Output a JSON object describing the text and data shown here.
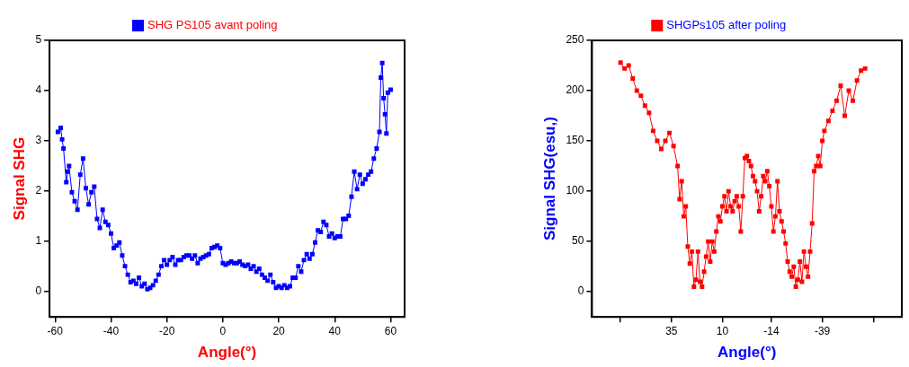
{
  "chart_data": [
    {
      "type": "line",
      "xlabel": "Angle(°)",
      "ylabel": "Signal SHG",
      "marker": "square",
      "legend": "top",
      "xlim": [
        -62,
        65
      ],
      "ylim": [
        -0.5,
        5
      ],
      "xticks": [
        -60,
        -40,
        -20,
        0,
        20,
        40,
        60
      ],
      "yticks": [
        0,
        1,
        2,
        3,
        4,
        5
      ],
      "x": [
        -59,
        -58,
        -57.5,
        -57,
        -56,
        -55.5,
        -55,
        -54,
        -53,
        -52,
        -51,
        -50,
        -49,
        -48,
        -47,
        -46,
        -45,
        -44,
        -43,
        -42,
        -41,
        -40,
        -39,
        -38,
        -37,
        -36,
        -35,
        -34,
        -33,
        -32,
        -31,
        -30,
        -29,
        -28,
        -27,
        -26,
        -25,
        -24,
        -23,
        -22,
        -21,
        -20,
        -19,
        -18,
        -17,
        -16,
        -15,
        -14,
        -13,
        -12,
        -11,
        -10,
        -9,
        -8,
        -7,
        -6,
        -5,
        -4,
        -3,
        -2,
        -1,
        0,
        1,
        2,
        3,
        4,
        5,
        6,
        7,
        8,
        9,
        10,
        11,
        12,
        13,
        14,
        15,
        16,
        17,
        18,
        19,
        20,
        21,
        22,
        23,
        24,
        25,
        26,
        27,
        28,
        29,
        30,
        31,
        32,
        33,
        34,
        35,
        36,
        37,
        38,
        39,
        40,
        41,
        42,
        43,
        44,
        45,
        46,
        47,
        48,
        49,
        50,
        51,
        52,
        53,
        54,
        55,
        56,
        56.5,
        57,
        57.5,
        58,
        58.5,
        59,
        60
      ],
      "series": [
        {
          "name": "SHG PS105 avant poling",
          "color": "#0000ff",
          "values": [
            3.18,
            3.26,
            3.03,
            2.85,
            2.18,
            2.39,
            2.5,
            1.98,
            1.8,
            1.63,
            2.33,
            2.65,
            2.06,
            1.74,
            1.98,
            2.09,
            1.45,
            1.27,
            1.63,
            1.39,
            1.33,
            1.16,
            0.87,
            0.92,
            0.98,
            0.72,
            0.51,
            0.34,
            0.19,
            0.22,
            0.16,
            0.28,
            0.11,
            0.16,
            0.05,
            0.08,
            0.13,
            0.22,
            0.34,
            0.51,
            0.63,
            0.54,
            0.63,
            0.69,
            0.54,
            0.63,
            0.63,
            0.69,
            0.72,
            0.72,
            0.66,
            0.72,
            0.57,
            0.66,
            0.69,
            0.72,
            0.75,
            0.87,
            0.89,
            0.92,
            0.87,
            0.57,
            0.54,
            0.57,
            0.6,
            0.57,
            0.57,
            0.6,
            0.54,
            0.51,
            0.54,
            0.46,
            0.51,
            0.4,
            0.46,
            0.34,
            0.28,
            0.22,
            0.34,
            0.19,
            0.08,
            0.11,
            0.08,
            0.13,
            0.08,
            0.11,
            0.28,
            0.28,
            0.51,
            0.4,
            0.63,
            0.75,
            0.66,
            0.75,
            0.98,
            1.22,
            1.19,
            1.39,
            1.33,
            1.1,
            1.16,
            1.07,
            1.1,
            1.1,
            1.45,
            1.45,
            1.51,
            1.89,
            2.39,
            2.04,
            2.33,
            2.15,
            2.24,
            2.33,
            2.39,
            2.65,
            2.85,
            3.18,
            4.26,
            4.55,
            3.85,
            3.53,
            3.15,
            3.96,
            4.02
          ]
        }
      ]
    },
    {
      "type": "line",
      "xlabel": "Angle(°)",
      "ylabel": "Signal SHG(esu,)",
      "marker": "square",
      "legend": "top",
      "xlim": [
        74,
        -78
      ],
      "ylim": [
        -25,
        250
      ],
      "xticks": [
        {
          "value": 60,
          "label": null
        },
        35,
        10,
        -14,
        -39,
        {
          "value": -64,
          "label": null
        }
      ],
      "yticks": [
        0,
        50,
        100,
        150,
        200,
        250
      ],
      "x": [
        60,
        58,
        56,
        54,
        52,
        50,
        48,
        46,
        44,
        42,
        40,
        38,
        36,
        34,
        32,
        31,
        30,
        29,
        28,
        27,
        26,
        25,
        24,
        23,
        22,
        21,
        20,
        19,
        18,
        17,
        16,
        15,
        14,
        13,
        12,
        11,
        10,
        9,
        8,
        7,
        6,
        5,
        4,
        3,
        2,
        1,
        0,
        -1,
        -2,
        -3,
        -4,
        -5,
        -6,
        -7,
        -8,
        -9,
        -10,
        -11,
        -12,
        -13,
        -14,
        -15,
        -16,
        -17,
        -18,
        -19,
        -20,
        -21,
        -22,
        -23,
        -24,
        -25,
        -26,
        -27,
        -28,
        -29,
        -30,
        -31,
        -32,
        -33,
        -34,
        -35,
        -36,
        -37,
        -38,
        -39,
        -40,
        -42,
        -44,
        -46,
        -48,
        -50,
        -52,
        -54,
        -56,
        -58,
        -60
      ],
      "series": [
        {
          "name": "SHGPs105 after poling",
          "color": "#ff0000",
          "values": [
            228,
            222,
            225,
            212,
            200,
            195,
            185,
            178,
            160,
            150,
            142,
            150,
            158,
            145,
            125,
            92,
            110,
            75,
            85,
            45,
            28,
            40,
            5,
            12,
            40,
            10,
            5,
            20,
            35,
            50,
            30,
            50,
            40,
            60,
            75,
            70,
            85,
            95,
            80,
            100,
            85,
            80,
            90,
            95,
            85,
            60,
            95,
            133,
            135,
            130,
            125,
            115,
            110,
            100,
            80,
            95,
            115,
            110,
            120,
            105,
            85,
            60,
            75,
            110,
            80,
            70,
            60,
            48,
            30,
            20,
            15,
            25,
            5,
            12,
            30,
            10,
            40,
            25,
            15,
            40,
            68,
            120,
            125,
            135,
            125,
            150,
            160,
            170,
            180,
            190,
            205,
            175,
            200,
            190,
            210,
            220,
            222
          ]
        }
      ]
    }
  ]
}
